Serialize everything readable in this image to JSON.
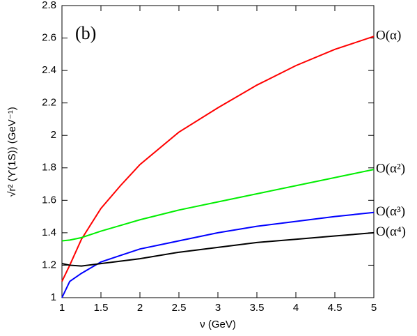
{
  "chart_data": {
    "type": "line",
    "annotation": "(b)",
    "x_label": "ν (GeV)",
    "y_label": "√r² (ϒ(1S)) (GeV⁻¹)",
    "x": [
      1,
      1.1,
      1.25,
      1.5,
      1.75,
      2,
      2.5,
      3,
      3.5,
      4,
      4.5,
      5
    ],
    "series": [
      {
        "name": "O(α)",
        "color": "#ff0000",
        "values": [
          1.1,
          1.2,
          1.36,
          1.55,
          1.69,
          1.82,
          2.02,
          2.17,
          2.31,
          2.43,
          2.53,
          2.61
        ]
      },
      {
        "name": "O(α²)",
        "color": "#00ee00",
        "values": [
          1.35,
          1.355,
          1.37,
          1.41,
          1.445,
          1.48,
          1.54,
          1.59,
          1.64,
          1.69,
          1.74,
          1.79
        ]
      },
      {
        "name": "O(α³)",
        "color": "#0000ff",
        "values": [
          1.0,
          1.1,
          1.15,
          1.22,
          1.26,
          1.3,
          1.35,
          1.4,
          1.44,
          1.47,
          1.5,
          1.525
        ]
      },
      {
        "name": "O(α⁴)",
        "color": "#000000",
        "values": [
          1.21,
          1.2,
          1.195,
          1.21,
          1.225,
          1.24,
          1.28,
          1.31,
          1.34,
          1.36,
          1.38,
          1.4
        ]
      }
    ],
    "xlim": [
      1,
      5
    ],
    "xticks": [
      1,
      1.5,
      2,
      2.5,
      3,
      3.5,
      4,
      4.5,
      5
    ],
    "ylim": [
      1,
      2.8
    ],
    "yticks": [
      1,
      1.2,
      1.4,
      1.6,
      1.8,
      2,
      2.2,
      2.4,
      2.6,
      2.8
    ]
  }
}
